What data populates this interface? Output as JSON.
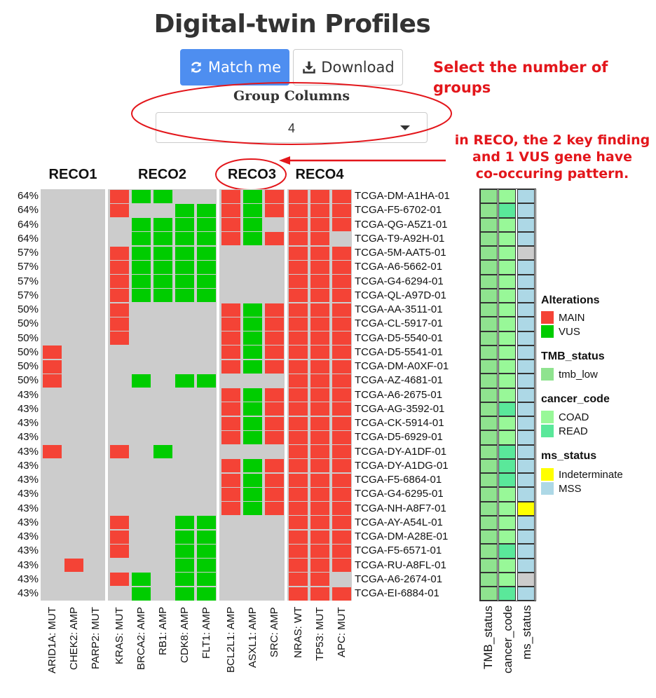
{
  "title": "Digital-twin Profiles",
  "buttons": {
    "match": "Match me",
    "download": "Download"
  },
  "group_select": {
    "label": "Group Columns",
    "value": "4"
  },
  "annotations": {
    "select_groups": [
      "Select the number of",
      "groups"
    ],
    "reco_note": [
      "in RECO, the 2 key finding",
      "and 1 VUS gene have",
      "co-occuring pattern."
    ]
  },
  "colors": {
    "main": "#f44336",
    "vus": "#00cc00",
    "empty": "#cccccc",
    "tmb_low": "#8fe38f",
    "coad": "#98f898",
    "read": "#5ae89a",
    "indeterminate": "#ffff00",
    "mss": "#add8e6",
    "annotation": "#e3161b"
  },
  "groups": [
    {
      "name": "RECO1",
      "genes": [
        "ARID1A: MUT",
        "CHEK2: AMP",
        "PARP2: MUT"
      ]
    },
    {
      "name": "RECO2",
      "genes": [
        "KRAS: MUT",
        "BRCA2: AMP",
        "RB1: AMP",
        "CDK8: AMP",
        "FLT1: AMP"
      ]
    },
    {
      "name": "RECO3",
      "genes": [
        "BCL2L1: AMP",
        "ASXL1: AMP",
        "SRC: AMP"
      ]
    },
    {
      "name": "RECO4",
      "genes": [
        "NRAS: WT",
        "TP53: MUT",
        "APC: MUT"
      ]
    }
  ],
  "samples": [
    {
      "id": "TCGA-DM-A1HA-01",
      "pct": "64%",
      "cells": "000MVV00MVM111",
      "ms": "MSS",
      "cc": "COAD"
    },
    {
      "id": "TCGA-F5-6702-01",
      "pct": "64%",
      "cells": "000M00VVMVM111",
      "ms": "MSS",
      "cc": "READ"
    },
    {
      "id": "TCGA-QG-A5Z1-01",
      "pct": "64%",
      "cells": "0000VVVVMV0111",
      "ms": "MSS",
      "cc": "COAD"
    },
    {
      "id": "TCGA-T9-A92H-01",
      "pct": "64%",
      "cells": "0000VVVVMVM110",
      "ms": "MSS",
      "cc": "COAD"
    },
    {
      "id": "TCGA-5M-AAT5-01",
      "pct": "57%",
      "cells": "000MVVVV000111",
      "ms": "NONE",
      "cc": "COAD"
    },
    {
      "id": "TCGA-A6-5662-01",
      "pct": "57%",
      "cells": "000MVVVV000111",
      "ms": "MSS",
      "cc": "COAD"
    },
    {
      "id": "TCGA-G4-6294-01",
      "pct": "57%",
      "cells": "000MVVVV000111",
      "ms": "MSS",
      "cc": "COAD"
    },
    {
      "id": "TCGA-QL-A97D-01",
      "pct": "57%",
      "cells": "000MVVVV000111",
      "ms": "MSS",
      "cc": "COAD"
    },
    {
      "id": "TCGA-AA-3511-01",
      "pct": "50%",
      "cells": "000M0000MVM111",
      "ms": "MSS",
      "cc": "COAD"
    },
    {
      "id": "TCGA-CL-5917-01",
      "pct": "50%",
      "cells": "000M0000MVM111",
      "ms": "MSS",
      "cc": "COAD"
    },
    {
      "id": "TCGA-D5-5540-01",
      "pct": "50%",
      "cells": "000M0000MVM111",
      "ms": "MSS",
      "cc": "COAD"
    },
    {
      "id": "TCGA-D5-5541-01",
      "pct": "50%",
      "cells": "M0000000MVM111",
      "ms": "MSS",
      "cc": "COAD"
    },
    {
      "id": "TCGA-DM-A0XF-01",
      "pct": "50%",
      "cells": "M0000000MVM111",
      "ms": "MSS",
      "cc": "COAD"
    },
    {
      "id": "TCGA-AZ-4681-01",
      "pct": "50%",
      "cells": "M000V0VV000111",
      "ms": "MSS",
      "cc": "COAD"
    },
    {
      "id": "TCGA-A6-2675-01",
      "pct": "43%",
      "cells": "00000000MVM111",
      "ms": "MSS",
      "cc": "COAD"
    },
    {
      "id": "TCGA-AG-3592-01",
      "pct": "43%",
      "cells": "00000000MVM111",
      "ms": "MSS",
      "cc": "READ"
    },
    {
      "id": "TCGA-CK-5914-01",
      "pct": "43%",
      "cells": "00000000MVM111",
      "ms": "MSS",
      "cc": "COAD"
    },
    {
      "id": "TCGA-D5-6929-01",
      "pct": "43%",
      "cells": "00000000MVM111",
      "ms": "MSS",
      "cc": "COAD"
    },
    {
      "id": "TCGA-DY-A1DF-01",
      "pct": "43%",
      "cells": "M00M0V00000111",
      "ms": "MSS",
      "cc": "READ"
    },
    {
      "id": "TCGA-DY-A1DG-01",
      "pct": "43%",
      "cells": "00000000MVM111",
      "ms": "MSS",
      "cc": "READ"
    },
    {
      "id": "TCGA-F5-6864-01",
      "pct": "43%",
      "cells": "00000000MVM111",
      "ms": "MSS",
      "cc": "READ"
    },
    {
      "id": "TCGA-G4-6295-01",
      "pct": "43%",
      "cells": "00000000MVM111",
      "ms": "MSS",
      "cc": "COAD"
    },
    {
      "id": "TCGA-NH-A8F7-01",
      "pct": "43%",
      "cells": "00000000MVM111",
      "ms": "Indeterminate",
      "cc": "COAD"
    },
    {
      "id": "TCGA-AY-A54L-01",
      "pct": "43%",
      "cells": "000M00VV000111",
      "ms": "MSS",
      "cc": "COAD"
    },
    {
      "id": "TCGA-DM-A28E-01",
      "pct": "43%",
      "cells": "000M00VV000111",
      "ms": "MSS",
      "cc": "COAD"
    },
    {
      "id": "TCGA-F5-6571-01",
      "pct": "43%",
      "cells": "000M00VV000111",
      "ms": "MSS",
      "cc": "READ"
    },
    {
      "id": "TCGA-RU-A8FL-01",
      "pct": "43%",
      "cells": "0M0000VV000111",
      "ms": "MSS",
      "cc": "COAD"
    },
    {
      "id": "TCGA-A6-2674-01",
      "pct": "43%",
      "cells": "000MV0VV000110",
      "ms": "NONE",
      "cc": "COAD"
    },
    {
      "id": "TCGA-EI-6884-01",
      "pct": "43%",
      "cells": "0000V0VV000111",
      "ms": "MSS",
      "cc": "READ"
    }
  ],
  "annotation_columns": [
    "TMB_status",
    "cancer_code",
    "ms_status"
  ],
  "legend": [
    {
      "title": "Alterations",
      "items": [
        {
          "label": "MAIN",
          "color": "#f44336"
        },
        {
          "label": "VUS",
          "color": "#00cc00"
        }
      ]
    },
    {
      "title": "TMB_status",
      "items": [
        {
          "label": "tmb_low",
          "color": "#8fe38f"
        }
      ]
    },
    {
      "title": "cancer_code",
      "items": [
        {
          "label": "COAD",
          "color": "#98f898"
        },
        {
          "label": "READ",
          "color": "#5ae89a"
        }
      ]
    },
    {
      "title": "ms_status",
      "items": [
        {
          "label": "Indeterminate",
          "color": "#ffff00"
        },
        {
          "label": "MSS",
          "color": "#add8e6"
        }
      ]
    }
  ]
}
